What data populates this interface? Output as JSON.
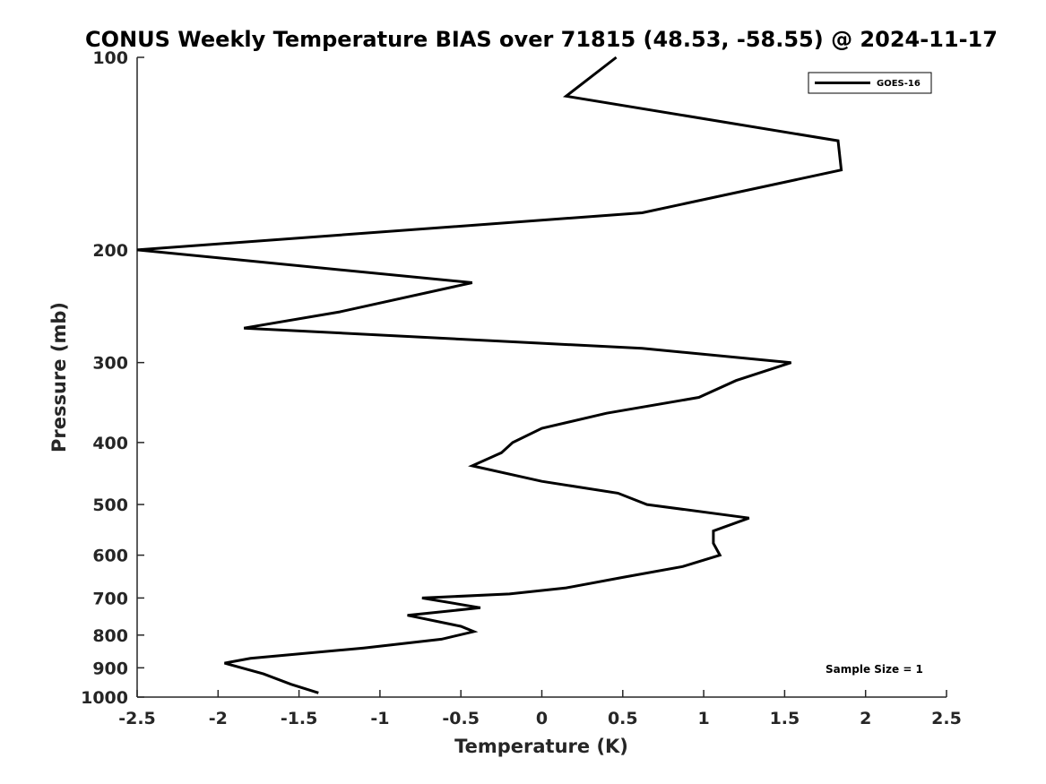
{
  "chart_data": {
    "type": "line",
    "title": "CONUS Weekly Temperature BIAS over 71815 (48.53, -58.55) @ 2024-11-17",
    "xlabel": "Temperature (K)",
    "ylabel": "Pressure (mb)",
    "xlim": [
      -2.5,
      2.5
    ],
    "ylim": [
      1000,
      100
    ],
    "yscale": "log",
    "y_reversed": true,
    "xticks": [
      -2.5,
      -2,
      -1.5,
      -1,
      -0.5,
      0,
      0.5,
      1,
      1.5,
      2,
      2.5
    ],
    "xtick_labels": [
      "-2.5",
      "-2",
      "-1.5",
      "-1",
      "-0.5",
      "0",
      "0.5",
      "1",
      "1.5",
      "2",
      "2.5"
    ],
    "yticks": [
      100,
      200,
      300,
      400,
      500,
      600,
      700,
      800,
      900,
      1000
    ],
    "ytick_labels": [
      "100",
      "200",
      "300",
      "400",
      "500",
      "600",
      "700",
      "800",
      "900",
      "1000"
    ],
    "grid": false,
    "legend_position": "top-right",
    "annotation": "Sample Size = 1",
    "colors": {
      "line": "#000000",
      "axis": "#262626"
    },
    "series": [
      {
        "name": "GOES-16",
        "points": [
          {
            "x": 0.46,
            "y": 100
          },
          {
            "x": 0.15,
            "y": 115
          },
          {
            "x": 1.83,
            "y": 135
          },
          {
            "x": 1.85,
            "y": 150
          },
          {
            "x": 0.62,
            "y": 175
          },
          {
            "x": -2.5,
            "y": 200
          },
          {
            "x": -0.43,
            "y": 225
          },
          {
            "x": -1.25,
            "y": 250
          },
          {
            "x": -1.84,
            "y": 265
          },
          {
            "x": 0.62,
            "y": 285
          },
          {
            "x": 1.54,
            "y": 300
          },
          {
            "x": 1.2,
            "y": 320
          },
          {
            "x": 0.97,
            "y": 340
          },
          {
            "x": 0.4,
            "y": 360
          },
          {
            "x": 0.0,
            "y": 380
          },
          {
            "x": -0.18,
            "y": 400
          },
          {
            "x": -0.25,
            "y": 415
          },
          {
            "x": -0.43,
            "y": 435
          },
          {
            "x": 0.0,
            "y": 460
          },
          {
            "x": 0.47,
            "y": 480
          },
          {
            "x": 0.65,
            "y": 500
          },
          {
            "x": 1.28,
            "y": 525
          },
          {
            "x": 1.06,
            "y": 550
          },
          {
            "x": 1.06,
            "y": 575
          },
          {
            "x": 1.1,
            "y": 600
          },
          {
            "x": 0.87,
            "y": 625
          },
          {
            "x": 0.5,
            "y": 650
          },
          {
            "x": 0.15,
            "y": 675
          },
          {
            "x": -0.2,
            "y": 690
          },
          {
            "x": -0.74,
            "y": 700
          },
          {
            "x": -0.38,
            "y": 725
          },
          {
            "x": -0.83,
            "y": 745
          },
          {
            "x": -0.5,
            "y": 775
          },
          {
            "x": -0.42,
            "y": 790
          },
          {
            "x": -0.62,
            "y": 812
          },
          {
            "x": -1.1,
            "y": 838
          },
          {
            "x": -1.8,
            "y": 870
          },
          {
            "x": -1.96,
            "y": 885
          },
          {
            "x": -1.72,
            "y": 920
          },
          {
            "x": -1.55,
            "y": 955
          },
          {
            "x": -1.38,
            "y": 985
          }
        ]
      }
    ]
  }
}
